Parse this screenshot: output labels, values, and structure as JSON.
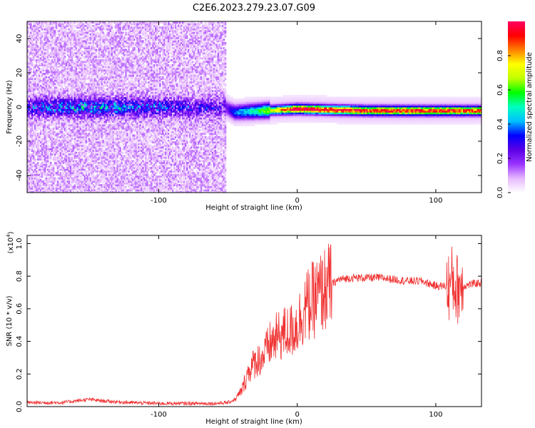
{
  "title": "C2E6.2023.279.23.07.G09",
  "chart_data": [
    {
      "type": "heatmap",
      "xlabel": "Height of straight line (km)",
      "ylabel": "Frequency (Hz)",
      "xlim": [
        -195,
        133
      ],
      "ylim": [
        -50,
        50
      ],
      "xticks": [
        -100,
        0,
        100
      ],
      "xtick_labels": [
        "-100",
        "0",
        "100"
      ],
      "yticks": [
        -40,
        -20,
        0,
        20,
        40
      ],
      "ytick_labels": [
        "-40",
        "-20",
        "0",
        "20",
        "40"
      ],
      "colorbar": {
        "label": "Normalized spectral amplitude",
        "range": [
          0,
          1
        ],
        "ticks": [
          0,
          0.2,
          0.4,
          0.6,
          0.8
        ],
        "tick_labels": [
          "0.0",
          "0.2",
          "0.4",
          "0.6",
          "0.8"
        ],
        "colors": [
          "#ffffff",
          "#e6b8ff",
          "#9a33ff",
          "#5a00e6",
          "#0000ff",
          "#00c0ff",
          "#00ffc0",
          "#00ff00",
          "#c0ff00",
          "#ffff00",
          "#ff8000",
          "#ff0000",
          "#ff0060"
        ]
      },
      "description_points": [
        {
          "height_km": -195,
          "freq_hz": 0,
          "amplitude": 0.15
        },
        {
          "height_km": -160,
          "freq_hz": 0,
          "amplitude": 0.25
        },
        {
          "height_km": -130,
          "freq_hz": 0,
          "amplitude": 0.22
        },
        {
          "height_km": -52,
          "freq_hz": 0,
          "amplitude": 0.12
        },
        {
          "height_km": -45,
          "freq_hz": -3,
          "amplitude": 0.3
        },
        {
          "height_km": -25,
          "freq_hz": -2,
          "amplitude": 0.5
        },
        {
          "height_km": 0,
          "freq_hz": -1,
          "amplitude": 0.95
        },
        {
          "height_km": 50,
          "freq_hz": -2,
          "amplitude": 0.85
        },
        {
          "height_km": 100,
          "freq_hz": -2,
          "amplitude": 0.85
        },
        {
          "height_km": 133,
          "freq_hz": -2,
          "amplitude": 0.8
        }
      ]
    },
    {
      "type": "line",
      "xlabel": "Height of straight line (km)",
      "ylabel": "SNR (10 * v/v)",
      "y_multiplier": "(x10",
      "y_multiplier_exp": "4",
      "y_multiplier_close": ")",
      "xlim": [
        -195,
        133
      ],
      "ylim": [
        0,
        1.05
      ],
      "xticks": [
        -100,
        0,
        100
      ],
      "xtick_labels": [
        "-100",
        "0",
        "100"
      ],
      "yticks": [
        0,
        0.2,
        0.4,
        0.6,
        0.8,
        1.0
      ],
      "ytick_labels": [
        "0.0",
        "0.2",
        "0.4",
        "0.6",
        "0.8",
        "1.0"
      ],
      "line_color": "#f03030",
      "series": [
        {
          "name": "SNR",
          "x": [
            -195,
            -170,
            -150,
            -140,
            -120,
            -100,
            -80,
            -60,
            -50,
            -45,
            -40,
            -35,
            -30,
            -25,
            -20,
            -15,
            -10,
            -5,
            0,
            5,
            10,
            15,
            20,
            25,
            30,
            40,
            50,
            60,
            70,
            80,
            90,
            100,
            110,
            112,
            115,
            118,
            120,
            125,
            133
          ],
          "y": [
            0.02,
            0.02,
            0.04,
            0.03,
            0.02,
            0.015,
            0.015,
            0.015,
            0.02,
            0.04,
            0.1,
            0.22,
            0.28,
            0.3,
            0.38,
            0.42,
            0.45,
            0.46,
            0.5,
            0.6,
            0.64,
            0.68,
            0.72,
            0.75,
            0.78,
            0.79,
            0.79,
            0.79,
            0.78,
            0.77,
            0.77,
            0.74,
            0.74,
            0.78,
            0.72,
            0.75,
            0.74,
            0.75,
            0.76
          ]
        }
      ]
    }
  ]
}
